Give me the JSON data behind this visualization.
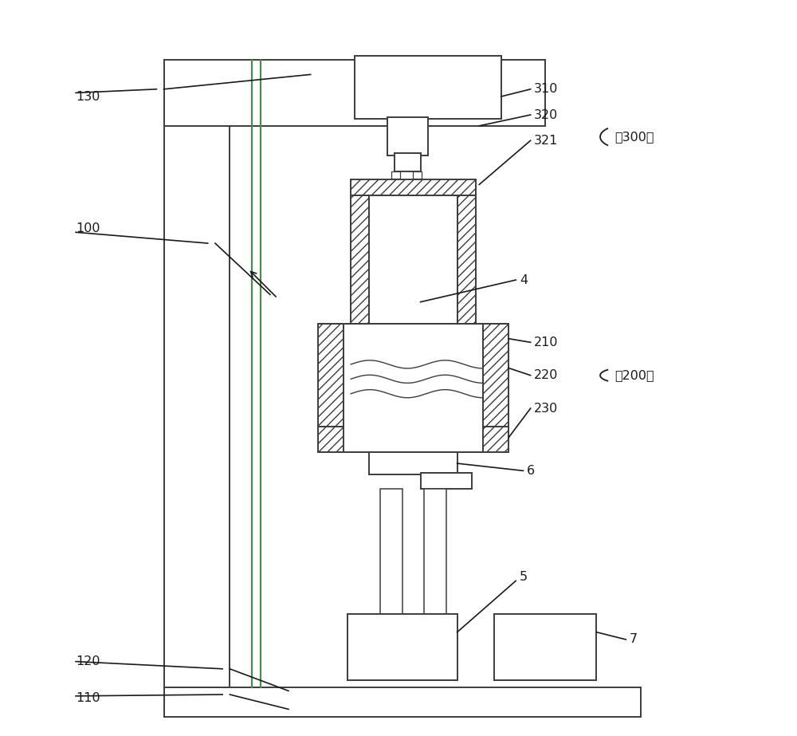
{
  "bg": "#ffffff",
  "lc": "#3c3c3c",
  "tc": "#1a1a1a",
  "gc": "#4a8a4a",
  "lw": 1.4,
  "lw_thin": 0.9,
  "fs": 11.5,
  "figsize": [
    10.0,
    9.23
  ]
}
